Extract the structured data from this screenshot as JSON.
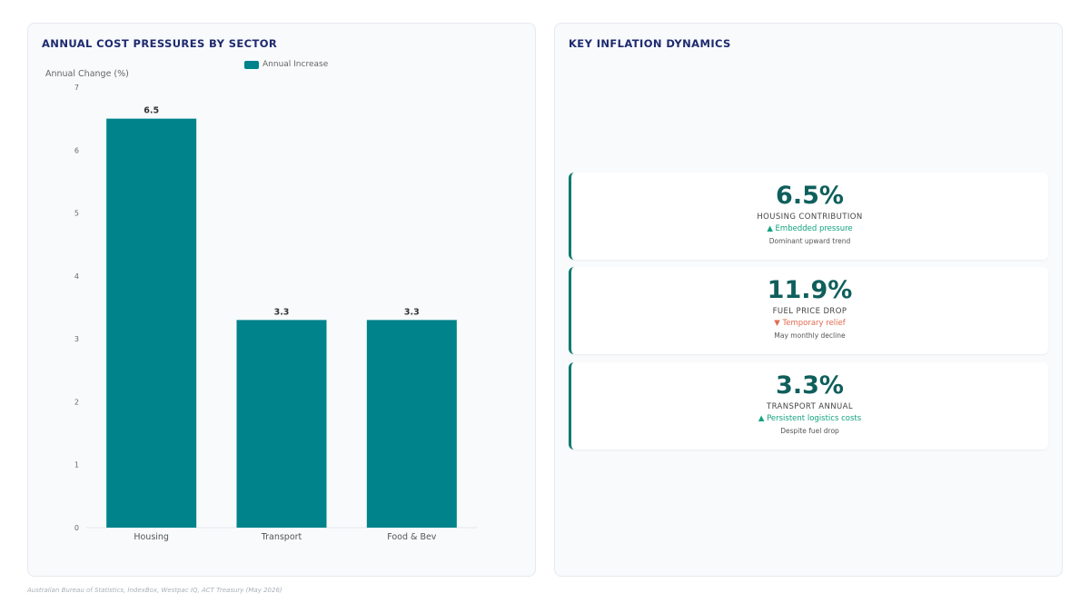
{
  "left_panel": {
    "title": "ANNUAL COST PRESSURES BY SECTOR"
  },
  "right_panel": {
    "title": "KEY INFLATION DYNAMICS"
  },
  "chart_data": {
    "type": "bar",
    "title": "ANNUAL COST PRESSURES BY SECTOR",
    "ylabel": "Annual Change (%)",
    "xlabel": "",
    "categories": [
      "Housing",
      "Transport",
      "Food & Bev"
    ],
    "series": [
      {
        "name": "Annual Increase",
        "values": [
          6.5,
          3.3,
          3.3
        ],
        "color": "#00838a"
      }
    ],
    "ylim": [
      0,
      7
    ],
    "yticks": [
      0,
      1,
      2,
      3,
      4,
      5,
      6,
      7
    ],
    "data_labels": [
      "6.5",
      "3.3",
      "3.3"
    ],
    "legend": "top-center",
    "grid": false
  },
  "kpis": [
    {
      "value": "6.5%",
      "label": "HOUSING CONTRIBUTION",
      "trend": "▲ Embedded pressure",
      "direction": "up",
      "note": "Dominant upward trend"
    },
    {
      "value": "11.9%",
      "label": "FUEL PRICE DROP",
      "trend": "▼ Temporary relief",
      "direction": "down",
      "note": "May monthly decline"
    },
    {
      "value": "3.3%",
      "label": "TRANSPORT ANNUAL",
      "trend": "▲ Persistent logistics costs",
      "direction": "up",
      "note": "Despite fuel drop"
    }
  ],
  "colors": {
    "accent": "#00838a",
    "kpi_value": "#0f5f5c",
    "trend_up": "#10a37f",
    "trend_down": "#e06a4f",
    "title": "#1e2a6e"
  },
  "footer": {
    "source": "Australian Bureau of Statistics, IndexBox, Westpac IQ, ACT Treasury (May 2026)"
  }
}
